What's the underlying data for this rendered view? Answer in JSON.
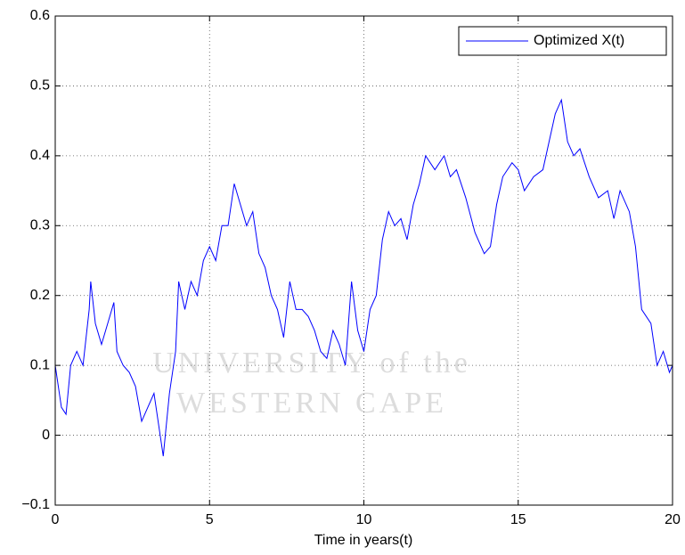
{
  "chart_data": {
    "type": "line",
    "xlabel": "Time in years(t)",
    "watermark": [
      "UNIVERSITY of the",
      "WESTERN CAPE"
    ],
    "x": [
      0,
      0.2,
      0.35,
      0.5,
      0.7,
      0.9,
      1.1,
      1.15,
      1.3,
      1.5,
      1.7,
      1.9,
      2.0,
      2.2,
      2.4,
      2.6,
      2.8,
      3.0,
      3.2,
      3.4,
      3.5,
      3.7,
      3.9,
      4.0,
      4.2,
      4.4,
      4.6,
      4.8,
      5.0,
      5.2,
      5.4,
      5.6,
      5.8,
      6.0,
      6.2,
      6.4,
      6.6,
      6.8,
      7.0,
      7.2,
      7.4,
      7.6,
      7.8,
      8.0,
      8.2,
      8.4,
      8.6,
      8.8,
      9.0,
      9.2,
      9.4,
      9.6,
      9.8,
      10.0,
      10.2,
      10.4,
      10.6,
      10.8,
      11.0,
      11.2,
      11.4,
      11.6,
      11.8,
      12.0,
      12.3,
      12.6,
      12.8,
      13.0,
      13.3,
      13.6,
      13.9,
      14.1,
      14.3,
      14.5,
      14.8,
      15.0,
      15.2,
      15.5,
      15.8,
      16.0,
      16.2,
      16.4,
      16.6,
      16.8,
      17.0,
      17.3,
      17.6,
      17.9,
      18.1,
      18.3,
      18.6,
      18.8,
      19.0,
      19.3,
      19.5,
      19.7,
      19.9,
      20
    ],
    "series": [
      {
        "name": "Optimized X(t)",
        "color": "#0000ff",
        "values": [
          0.1,
          0.04,
          0.03,
          0.1,
          0.12,
          0.1,
          0.18,
          0.22,
          0.16,
          0.13,
          0.16,
          0.19,
          0.12,
          0.1,
          0.09,
          0.07,
          0.02,
          0.04,
          0.06,
          0.0,
          -0.03,
          0.06,
          0.12,
          0.22,
          0.18,
          0.22,
          0.2,
          0.25,
          0.27,
          0.25,
          0.3,
          0.3,
          0.36,
          0.33,
          0.3,
          0.32,
          0.26,
          0.24,
          0.2,
          0.18,
          0.14,
          0.22,
          0.18,
          0.18,
          0.17,
          0.15,
          0.12,
          0.11,
          0.15,
          0.13,
          0.1,
          0.22,
          0.15,
          0.12,
          0.18,
          0.2,
          0.28,
          0.32,
          0.3,
          0.31,
          0.28,
          0.33,
          0.36,
          0.4,
          0.38,
          0.4,
          0.37,
          0.38,
          0.34,
          0.29,
          0.26,
          0.27,
          0.33,
          0.37,
          0.39,
          0.38,
          0.35,
          0.37,
          0.38,
          0.42,
          0.46,
          0.48,
          0.42,
          0.4,
          0.41,
          0.37,
          0.34,
          0.35,
          0.31,
          0.35,
          0.32,
          0.27,
          0.18,
          0.16,
          0.1,
          0.12,
          0.09,
          0.1
        ]
      }
    ],
    "xlim": [
      0,
      20
    ],
    "xticks": [
      0,
      5,
      10,
      15,
      20
    ],
    "ylim": [
      -0.1,
      0.6
    ],
    "yticks": [
      {
        "value": -0.1,
        "label": "−0.1"
      },
      0,
      0.1,
      0.2,
      0.3,
      0.4,
      0.5,
      0.6
    ],
    "grid": true,
    "legend": "upper right"
  }
}
